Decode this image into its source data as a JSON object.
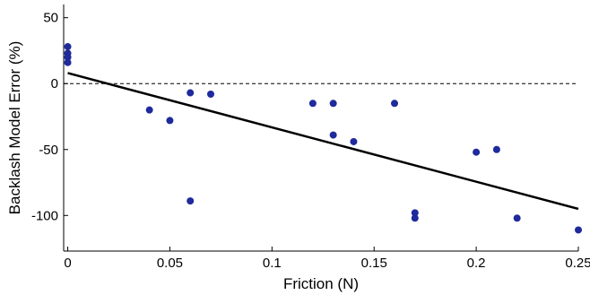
{
  "chart_data": {
    "type": "scatter",
    "title": "",
    "xlabel": "Friction (N)",
    "ylabel": "Backlash Model Error (%)",
    "xlim": [
      -0.002,
      0.25
    ],
    "ylim": [
      -127,
      60
    ],
    "xticks": [
      0,
      0.05,
      0.1,
      0.15,
      0.2,
      0.25
    ],
    "xtick_labels": [
      "0",
      "0.05",
      "0.1",
      "0.15",
      "0.2",
      "0.25"
    ],
    "yticks": [
      50,
      0,
      -50,
      -100
    ],
    "ytick_labels": [
      "50",
      "0",
      "-50",
      "-100"
    ],
    "grid": false,
    "legend": "none",
    "reference_line": {
      "y": 0,
      "style": "dashed"
    },
    "series": [
      {
        "type": "scatter",
        "color": "#1f2a9c",
        "points": [
          [
            0.0,
            28
          ],
          [
            0.0,
            23
          ],
          [
            0.0,
            20
          ],
          [
            0.0,
            16
          ],
          [
            0.04,
            -20
          ],
          [
            0.05,
            -28
          ],
          [
            0.06,
            -7
          ],
          [
            0.06,
            -89
          ],
          [
            0.07,
            -8
          ],
          [
            0.12,
            -15
          ],
          [
            0.13,
            -15
          ],
          [
            0.13,
            -39
          ],
          [
            0.14,
            -44
          ],
          [
            0.16,
            -15
          ],
          [
            0.17,
            -98
          ],
          [
            0.17,
            -102
          ],
          [
            0.2,
            -52
          ],
          [
            0.21,
            -50
          ],
          [
            0.22,
            -102
          ],
          [
            0.25,
            -111
          ]
        ]
      },
      {
        "type": "line",
        "color": "#000000",
        "points": [
          [
            0.0,
            8
          ],
          [
            0.25,
            -95
          ]
        ]
      }
    ]
  }
}
